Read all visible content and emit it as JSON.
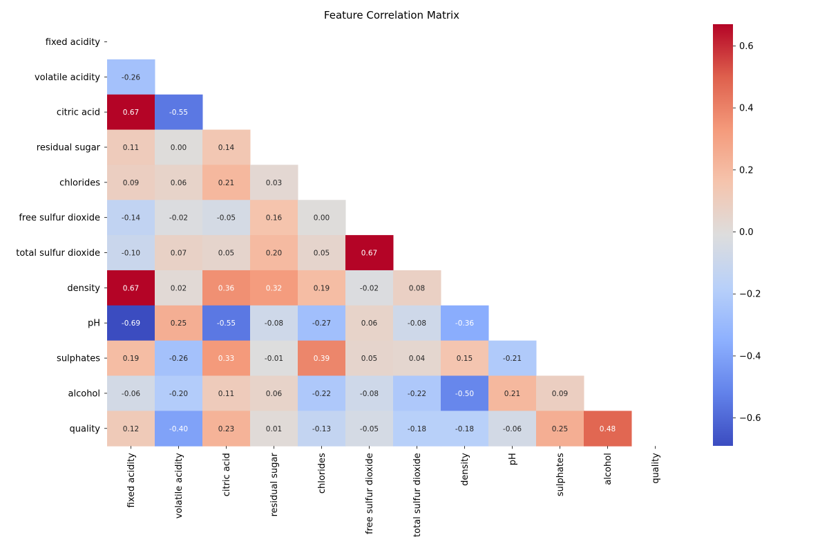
{
  "chart_data": {
    "type": "heatmap",
    "title": "Feature Correlation Matrix",
    "xlabel": "",
    "ylabel": "",
    "colormap": "coolwarm",
    "vmin": -0.69,
    "vmax": 0.67,
    "mask": "upper triangle including diagonal",
    "labels": [
      "fixed acidity",
      "volatile acidity",
      "citric acid",
      "residual sugar",
      "chlorides",
      "free sulfur dioxide",
      "total sulfur dioxide",
      "density",
      "pH",
      "sulphates",
      "alcohol",
      "quality"
    ],
    "matrix": [
      [
        null,
        null,
        null,
        null,
        null,
        null,
        null,
        null,
        null,
        null,
        null,
        null
      ],
      [
        -0.26,
        null,
        null,
        null,
        null,
        null,
        null,
        null,
        null,
        null,
        null,
        null
      ],
      [
        0.67,
        -0.55,
        null,
        null,
        null,
        null,
        null,
        null,
        null,
        null,
        null,
        null
      ],
      [
        0.11,
        -0.0,
        0.14,
        null,
        null,
        null,
        null,
        null,
        null,
        null,
        null,
        null
      ],
      [
        0.09,
        0.06,
        0.21,
        0.03,
        null,
        null,
        null,
        null,
        null,
        null,
        null,
        null
      ],
      [
        -0.14,
        -0.02,
        -0.05,
        0.16,
        0.0,
        null,
        null,
        null,
        null,
        null,
        null,
        null
      ],
      [
        -0.1,
        0.07,
        0.05,
        0.2,
        0.05,
        0.67,
        null,
        null,
        null,
        null,
        null,
        null
      ],
      [
        0.67,
        0.02,
        0.36,
        0.32,
        0.19,
        -0.02,
        0.08,
        null,
        null,
        null,
        null,
        null
      ],
      [
        -0.69,
        0.25,
        -0.55,
        -0.08,
        -0.27,
        0.06,
        -0.08,
        -0.36,
        null,
        null,
        null,
        null
      ],
      [
        0.19,
        -0.26,
        0.33,
        -0.01,
        0.39,
        0.05,
        0.04,
        0.15,
        -0.21,
        null,
        null,
        null
      ],
      [
        -0.06,
        -0.2,
        0.11,
        0.06,
        -0.22,
        -0.08,
        -0.22,
        -0.5,
        0.21,
        0.09,
        null,
        null
      ],
      [
        0.12,
        -0.4,
        0.23,
        0.01,
        -0.13,
        -0.05,
        -0.18,
        -0.18,
        -0.06,
        0.25,
        0.48,
        null
      ]
    ],
    "annotation_format": "0.00",
    "colorbar_ticks": [
      0.6,
      0.4,
      0.2,
      0.0,
      -0.2,
      -0.4,
      -0.6
    ],
    "colorbar_tick_labels": [
      "0.6",
      "0.4",
      "0.2",
      "0.0",
      "−0.2",
      "−0.4",
      "−0.6"
    ]
  }
}
